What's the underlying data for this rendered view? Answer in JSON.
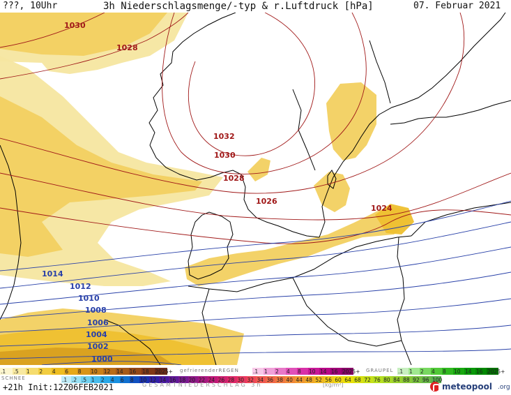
{
  "header": {
    "left": "???, 10Uhr",
    "title": "3h Niederschlagsmenge/-typ & r.Luftdruck [hPa]",
    "date": "07. Februar 2021"
  },
  "map": {
    "isobars": [
      {
        "label": "1030",
        "color": "#a01818"
      },
      {
        "label": "1028",
        "color": "#a01818"
      },
      {
        "label": "1032",
        "color": "#a01818"
      },
      {
        "label": "1030",
        "color": "#a01818"
      },
      {
        "label": "1028",
        "color": "#a01818"
      },
      {
        "label": "1026",
        "color": "#a01818"
      },
      {
        "label": "1024",
        "color": "#a01818"
      },
      {
        "label": "1014",
        "color": "#2840a8"
      },
      {
        "label": "1012",
        "color": "#2840a8"
      },
      {
        "label": "1010",
        "color": "#2840a8"
      },
      {
        "label": "1008",
        "color": "#2840a8"
      },
      {
        "label": "1006",
        "color": "#2840a8"
      },
      {
        "label": "1004",
        "color": "#2840a8"
      },
      {
        "label": "1002",
        "color": "#2840a8"
      },
      {
        "label": "1000",
        "color": "#2840a8"
      }
    ],
    "colors": {
      "snow_light": "#f5e6a0",
      "snow_mid": "#f2d060",
      "snow_heavy": "#eec030",
      "snow_dark": "#d8a020",
      "coast": "#000000"
    }
  },
  "legend": {
    "schnee_label": "SCHNEE",
    "regen_label": "gefrierenderREGEN",
    "graupel_label": "GRAUPEL",
    "snow_ticks": [
      ".1",
      ".5",
      "1",
      "2",
      "4",
      "6",
      "8",
      "10",
      "12",
      "14",
      "16",
      "18",
      "2025+"
    ],
    "freezing_ticks": [
      ".1",
      "1",
      "2",
      "4",
      "8",
      "10",
      "14",
      "16",
      "2025+"
    ],
    "graupel_ticks": [
      ".1",
      "1",
      "2",
      "4",
      "8",
      "10",
      "14",
      "16",
      "2025+"
    ],
    "rain_ticks": [
      ".1",
      ".2",
      ".5",
      "1",
      "2",
      "4",
      "6",
      "8",
      "10",
      "12",
      "14",
      "16",
      "18",
      "20",
      "22",
      "24",
      "26",
      "28",
      "30",
      "32",
      "34",
      "36",
      "38",
      "40",
      "44",
      "48",
      "52",
      "56",
      "60",
      "64",
      "68",
      "72",
      "76",
      "80",
      "84",
      "88",
      "92",
      "96",
      "100"
    ],
    "colors": {
      "snow": [
        "#fdf6cf",
        "#f8e9a0",
        "#f5dc6e",
        "#f2cd40",
        "#eebd20",
        "#e6a818",
        "#d89418",
        "#c98018",
        "#b86c18",
        "#a65a18",
        "#944818",
        "#803818",
        "#6c2a18"
      ],
      "freezing": [
        "#f8c8e8",
        "#f0a0d8",
        "#e878c8",
        "#e050b8",
        "#d830a8",
        "#c81898",
        "#b80888",
        "#a00078",
        "#880068"
      ],
      "graupel": [
        "#c8f0c0",
        "#a0e890",
        "#78d860",
        "#50c838",
        "#30b820",
        "#18a810",
        "#089808",
        "#008800",
        "#007000"
      ],
      "rain": [
        "#c0ecf8",
        "#98e0f4",
        "#70d0f0",
        "#48bcec",
        "#28a8e8",
        "#1890e0",
        "#1070d0",
        "#1050c0",
        "#1830b0",
        "#3020a8",
        "#4818a0",
        "#601898",
        "#781890",
        "#901888",
        "#a81880",
        "#c01878",
        "#d02070",
        "#e02868",
        "#e83860",
        "#f04858",
        "#f05850",
        "#f06848",
        "#f07840",
        "#f08838",
        "#f09830",
        "#f0a828",
        "#f0b820",
        "#f0c818",
        "#f0d810",
        "#e8e008",
        "#d8e010",
        "#c8e018",
        "#b8e020",
        "#a8d828",
        "#98d030",
        "#88c838",
        "#78c040",
        "#68b848",
        "#58b050"
      ]
    }
  },
  "footer": {
    "run": "+21h Init:12Z06FEB2021",
    "gesamt": "GESAMTNIEDERSCHLAG 3h",
    "unit": "[kg/m²]",
    "logo_text": "meteopool",
    "logo_tld": ".org"
  }
}
